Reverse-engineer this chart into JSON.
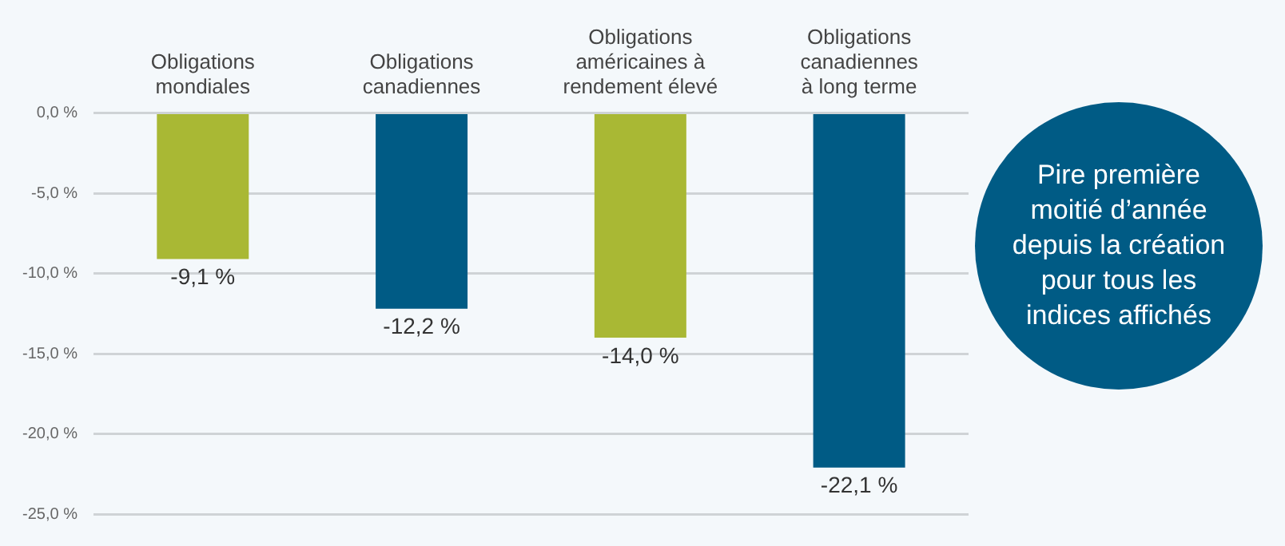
{
  "chart_data": {
    "type": "bar",
    "categories": [
      "Obligations\nmondiales",
      "Obligations\ncanadiennes",
      "Obligations\naméricaines à\nrendement élevé",
      "Obligations\ncanadiennes\nà long terme"
    ],
    "values": [
      -9.1,
      -12.2,
      -14.0,
      -22.1
    ],
    "colors": [
      "#a9b834",
      "#005b85",
      "#a9b834",
      "#005b85"
    ],
    "value_labels": [
      "-9,1 %",
      "-12,2 %",
      "-14,0 %",
      "-22,1 %"
    ],
    "ylim": [
      -25,
      0
    ],
    "yticks": [
      {
        "value": 0,
        "label": "0,0 %"
      },
      {
        "value": -5,
        "label": "-5,0 %"
      },
      {
        "value": -10,
        "label": "-10,0 %"
      },
      {
        "value": -15,
        "label": "-15,0 %"
      },
      {
        "value": -20,
        "label": "-20,0 %"
      },
      {
        "value": -25,
        "label": "-25,0 %"
      }
    ],
    "grid": "y",
    "annotations": [
      "Pire première moitié d’année depuis la création pour tous les indices affichés"
    ]
  }
}
